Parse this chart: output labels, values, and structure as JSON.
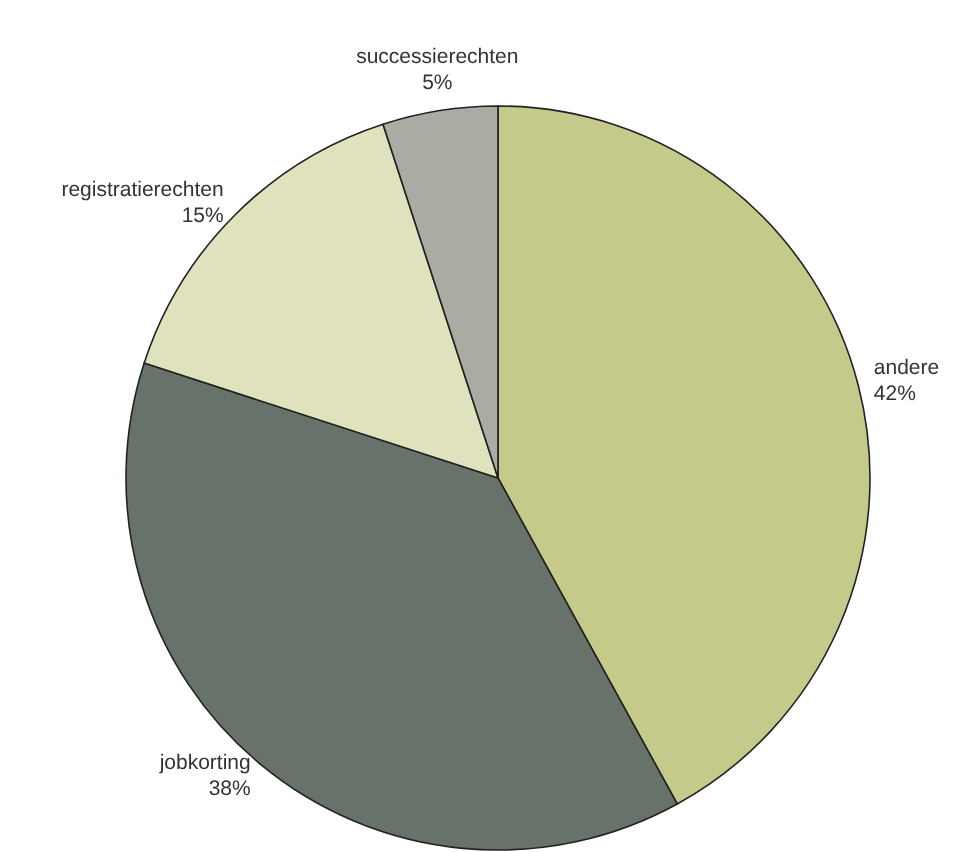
{
  "chart_data": {
    "type": "pie",
    "categories": [
      "andere",
      "jobkorting",
      "registratierechten",
      "successierechten"
    ],
    "values": [
      42,
      38,
      15,
      5
    ],
    "colors": [
      "#c5ca8a",
      "#67736a",
      "#e0e2bd",
      "#a9aca3"
    ],
    "value_labels": [
      "42%",
      "38%",
      "15%",
      "5%"
    ]
  }
}
